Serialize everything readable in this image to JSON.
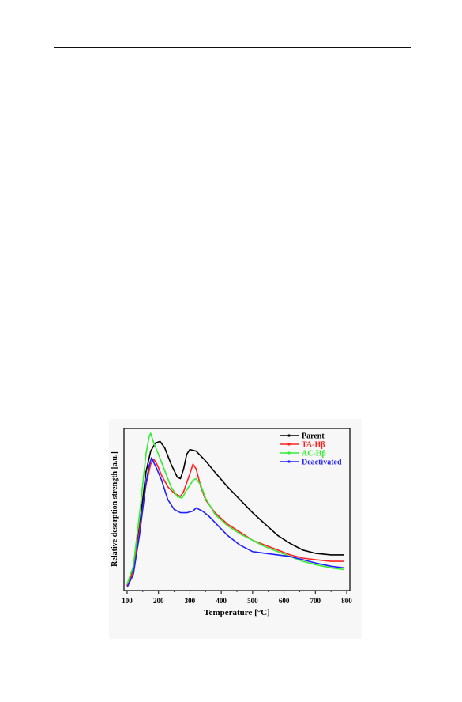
{
  "chart_data": {
    "type": "line",
    "title": "",
    "xlabel": "Temperature [°C]",
    "ylabel": "Relative desorption strength [a.u.]",
    "xlim": [
      90,
      810
    ],
    "ylim": [
      0,
      100
    ],
    "x_ticks": [
      100,
      200,
      300,
      400,
      500,
      600,
      700,
      800
    ],
    "y_ticks_shown": false,
    "grid": false,
    "legend_position": "top-right",
    "series": [
      {
        "name": "Parent",
        "color": "#000000",
        "points": [
          [
            100,
            3
          ],
          [
            120,
            13
          ],
          [
            140,
            40
          ],
          [
            160,
            73
          ],
          [
            175,
            86
          ],
          [
            190,
            91
          ],
          [
            205,
            92
          ],
          [
            220,
            88
          ],
          [
            240,
            78
          ],
          [
            260,
            70
          ],
          [
            270,
            69
          ],
          [
            280,
            75
          ],
          [
            290,
            84
          ],
          [
            300,
            87
          ],
          [
            320,
            86
          ],
          [
            350,
            80
          ],
          [
            380,
            73
          ],
          [
            420,
            64
          ],
          [
            460,
            56
          ],
          [
            500,
            48
          ],
          [
            540,
            41
          ],
          [
            580,
            34
          ],
          [
            620,
            29
          ],
          [
            660,
            25
          ],
          [
            700,
            23
          ],
          [
            750,
            22
          ],
          [
            790,
            22
          ]
        ]
      },
      {
        "name": "TA-Hβ",
        "color": "#ff2020",
        "points": [
          [
            100,
            3
          ],
          [
            120,
            12
          ],
          [
            140,
            38
          ],
          [
            160,
            65
          ],
          [
            175,
            78
          ],
          [
            185,
            81
          ],
          [
            195,
            78
          ],
          [
            210,
            71
          ],
          [
            230,
            64
          ],
          [
            250,
            60
          ],
          [
            270,
            58
          ],
          [
            280,
            61
          ],
          [
            300,
            72
          ],
          [
            310,
            78
          ],
          [
            320,
            75
          ],
          [
            335,
            64
          ],
          [
            350,
            56
          ],
          [
            380,
            48
          ],
          [
            420,
            41
          ],
          [
            460,
            36
          ],
          [
            500,
            31
          ],
          [
            540,
            28
          ],
          [
            580,
            25
          ],
          [
            620,
            22
          ],
          [
            660,
            20
          ],
          [
            700,
            19
          ],
          [
            750,
            18
          ],
          [
            790,
            18
          ]
        ]
      },
      {
        "name": "AC-Hβ",
        "color": "#33ee33",
        "points": [
          [
            100,
            4
          ],
          [
            120,
            15
          ],
          [
            140,
            48
          ],
          [
            160,
            84
          ],
          [
            170,
            95
          ],
          [
            175,
            97
          ],
          [
            185,
            91
          ],
          [
            200,
            84
          ],
          [
            220,
            74
          ],
          [
            240,
            64
          ],
          [
            260,
            58
          ],
          [
            275,
            57
          ],
          [
            290,
            62
          ],
          [
            310,
            68
          ],
          [
            320,
            69
          ],
          [
            335,
            65
          ],
          [
            350,
            57
          ],
          [
            380,
            47
          ],
          [
            420,
            40
          ],
          [
            460,
            35
          ],
          [
            500,
            31
          ],
          [
            540,
            27
          ],
          [
            580,
            24
          ],
          [
            620,
            21
          ],
          [
            660,
            18
          ],
          [
            700,
            16
          ],
          [
            750,
            14
          ],
          [
            790,
            13
          ]
        ]
      },
      {
        "name": "Deactivated",
        "color": "#2020ff",
        "points": [
          [
            100,
            2
          ],
          [
            120,
            10
          ],
          [
            140,
            35
          ],
          [
            160,
            66
          ],
          [
            170,
            77
          ],
          [
            178,
            82
          ],
          [
            185,
            79
          ],
          [
            195,
            75
          ],
          [
            210,
            68
          ],
          [
            230,
            56
          ],
          [
            250,
            50
          ],
          [
            270,
            48
          ],
          [
            290,
            48
          ],
          [
            310,
            49
          ],
          [
            320,
            51
          ],
          [
            340,
            49
          ],
          [
            360,
            46
          ],
          [
            380,
            42
          ],
          [
            420,
            34
          ],
          [
            460,
            28
          ],
          [
            500,
            24
          ],
          [
            540,
            23
          ],
          [
            580,
            22
          ],
          [
            620,
            21
          ],
          [
            660,
            19
          ],
          [
            700,
            17
          ],
          [
            750,
            15
          ],
          [
            790,
            14
          ]
        ]
      }
    ]
  }
}
